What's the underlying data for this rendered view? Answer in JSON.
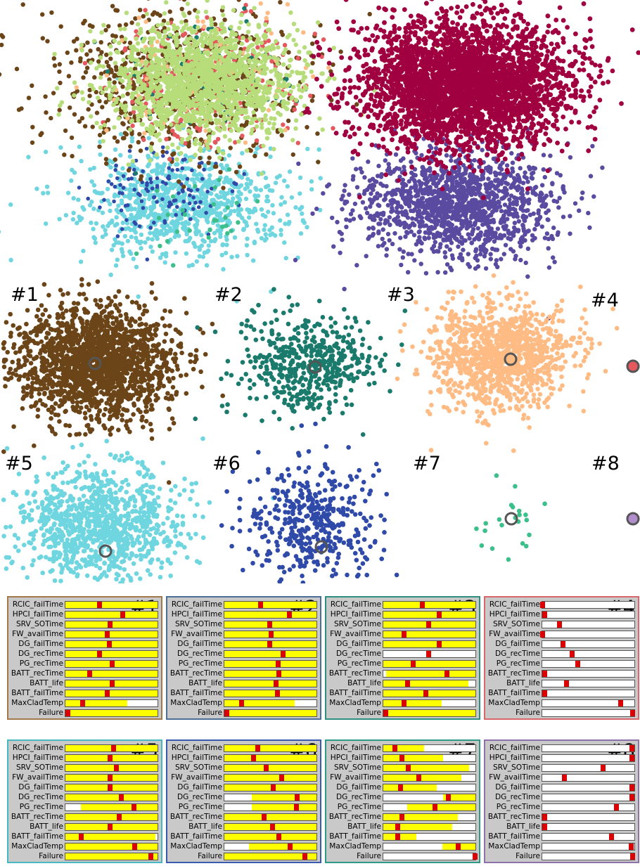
{
  "clusters": [
    {
      "label": "#1",
      "color": "#6b4418"
    },
    {
      "label": "#2",
      "color": "#1a7a6c"
    },
    {
      "label": "#3",
      "color": "#ffbb84"
    },
    {
      "label": "#4",
      "color": "#e4585e"
    },
    {
      "label": "#5",
      "color": "#6fd6e0"
    },
    {
      "label": "#6",
      "color": "#2f4aa8"
    },
    {
      "label": "#7",
      "color": "#3cbf8a"
    },
    {
      "label": "#8",
      "color": "#b28dcc"
    }
  ],
  "overview_colors": {
    "cluster_a": "#b7dd7a",
    "cluster_b": "#a0003f",
    "cluster_c": "#5a4aa0"
  },
  "parameters": [
    "RCIC_failTime",
    "HPCI_failTime",
    "SRV_SOTime",
    "FW_availTime",
    "DG_failTime",
    "DG_recTime",
    "PG_recTime",
    "BATT_recTime",
    "BATT_life",
    "BATT_failTime",
    "MaxCladTemp",
    "Failure"
  ],
  "chart_data": {
    "type": "scatter",
    "description_free": true,
    "panels": [
      {
        "cluster": "#1",
        "border": "#a27a4a",
        "ranges": [
          [
            0.0,
            1.0
          ],
          [
            0.0,
            1.0
          ],
          [
            0.0,
            1.0
          ],
          [
            0.0,
            1.0
          ],
          [
            0.0,
            1.0
          ],
          [
            0.0,
            1.0
          ],
          [
            0.0,
            1.0
          ],
          [
            0.0,
            1.0
          ],
          [
            0.0,
            1.0
          ],
          [
            0.0,
            1.0
          ],
          [
            0.0,
            0.67
          ],
          [
            0.0,
            1.0
          ]
        ],
        "markers": [
          0.37,
          0.62,
          0.48,
          0.45,
          0.47,
          0.37,
          0.5,
          0.26,
          0.5,
          0.45,
          0.18,
          0.02
        ]
      },
      {
        "cluster": "#2",
        "border": "#4b6f96",
        "ranges": [
          [
            0.0,
            1.0
          ],
          [
            0.0,
            1.0
          ],
          [
            0.0,
            1.0
          ],
          [
            0.0,
            1.0
          ],
          [
            0.0,
            1.0
          ],
          [
            0.0,
            1.0
          ],
          [
            0.0,
            1.0
          ],
          [
            0.0,
            1.0
          ],
          [
            0.0,
            1.0
          ],
          [
            0.0,
            1.0
          ],
          [
            0.0,
            0.76
          ],
          [
            0.0,
            1.0
          ]
        ],
        "markers": [
          0.39,
          0.7,
          0.49,
          0.5,
          0.49,
          0.63,
          0.58,
          0.59,
          0.56,
          0.57,
          0.18,
          0.02
        ]
      },
      {
        "cluster": "#3",
        "border": "#2e8f80",
        "ranges": [
          [
            0.0,
            1.0
          ],
          [
            0.0,
            1.0
          ],
          [
            0.0,
            1.0
          ],
          [
            0.0,
            1.0
          ],
          [
            0.0,
            1.0
          ],
          [
            0.0,
            0.0
          ],
          [
            0.0,
            1.0
          ],
          [
            0.03,
            1.0
          ],
          [
            0.0,
            0.92
          ],
          [
            0.0,
            1.0
          ],
          [
            0.0,
            0.63
          ],
          [
            0.0,
            1.0
          ]
        ],
        "markers": [
          0.42,
          0.6,
          0.49,
          0.22,
          0.6,
          0.49,
          0.32,
          0.69,
          0.26,
          0.46,
          0.22,
          0.02
        ]
      },
      {
        "cluster": "#4",
        "border": "#d8666a",
        "ranges": [
          [
            0.0,
            0.0
          ],
          [
            0.0,
            0.0
          ],
          [
            0.0,
            0.0
          ],
          [
            0.0,
            0.0
          ],
          [
            0.0,
            0.0
          ],
          [
            0.0,
            0.0
          ],
          [
            0.0,
            0.0
          ],
          [
            0.0,
            0.0
          ],
          [
            0.0,
            0.0
          ],
          [
            0.0,
            0.0
          ],
          [
            0.0,
            0.0
          ],
          [
            0.0,
            0.0
          ]
        ],
        "markers": [
          0.0,
          0.02,
          0.18,
          0.0,
          0.22,
          0.32,
          0.38,
          0.02,
          0.26,
          0.02,
          0.85,
          0.98
        ]
      },
      {
        "cluster": "#5",
        "border": "#45b8c4",
        "ranges": [
          [
            0.0,
            1.0
          ],
          [
            0.0,
            1.0
          ],
          [
            0.0,
            1.0
          ],
          [
            0.0,
            1.0
          ],
          [
            0.0,
            1.0
          ],
          [
            0.0,
            1.0
          ],
          [
            0.17,
            1.0
          ],
          [
            0.0,
            1.0
          ],
          [
            0.0,
            1.0
          ],
          [
            0.0,
            0.98
          ],
          [
            0.0,
            1.0
          ],
          [
            0.0,
            1.0
          ]
        ],
        "markers": [
          0.52,
          0.48,
          0.55,
          0.48,
          0.48,
          0.6,
          0.74,
          0.58,
          0.48,
          0.17,
          0.75,
          0.92
        ]
      },
      {
        "cluster": "#6",
        "border": "#3a5ab0",
        "ranges": [
          [
            0.0,
            1.0
          ],
          [
            0.0,
            1.0
          ],
          [
            0.0,
            1.0
          ],
          [
            0.0,
            1.0
          ],
          [
            0.0,
            1.0
          ],
          [
            0.3,
            1.0
          ],
          [
            0.3,
            1.0
          ],
          [
            0.0,
            1.0
          ],
          [
            0.0,
            1.0
          ],
          [
            0.0,
            1.0
          ],
          [
            0.27,
            1.0
          ],
          [
            0.0,
            1.0
          ]
        ],
        "markers": [
          0.36,
          0.31,
          0.45,
          0.62,
          0.53,
          0.79,
          0.78,
          0.43,
          0.52,
          0.59,
          0.71,
          0.87
        ]
      },
      {
        "cluster": "#7",
        "border": "#2e9a86",
        "ranges": [
          [
            0.0,
            0.44
          ],
          [
            0.0,
            0.65
          ],
          [
            0.0,
            0.93
          ],
          [
            0.0,
            0.85
          ],
          [
            0.0,
            0.58
          ],
          [
            0.65,
            1.0
          ],
          [
            0.26,
            1.0
          ],
          [
            0.0,
            0.81
          ],
          [
            0.0,
            0.75
          ],
          [
            0.0,
            0.36
          ],
          [
            0.64,
            1.0
          ],
          [
            0.99,
            1.0
          ]
        ],
        "markers": [
          0.12,
          0.2,
          0.27,
          0.38,
          0.18,
          0.7,
          0.56,
          0.2,
          0.15,
          0.15,
          0.81,
          0.99
        ]
      },
      {
        "cluster": "#8",
        "border": "#8f72aa",
        "ranges": [
          [
            0.0,
            0.0
          ],
          [
            0.0,
            0.0
          ],
          [
            0.0,
            0.0
          ],
          [
            0.0,
            0.0
          ],
          [
            0.0,
            0.0
          ],
          [
            0.0,
            0.0
          ],
          [
            0.0,
            0.0
          ],
          [
            0.0,
            0.0
          ],
          [
            0.0,
            0.0
          ],
          [
            0.0,
            0.0
          ],
          [
            0.0,
            0.0
          ],
          [
            0.0,
            0.0
          ]
        ],
        "markers": [
          0.97,
          0.97,
          0.66,
          0.24,
          0.97,
          0.97,
          0.8,
          0.02,
          0.02,
          0.75,
          0.96,
          0.98
        ]
      }
    ]
  }
}
